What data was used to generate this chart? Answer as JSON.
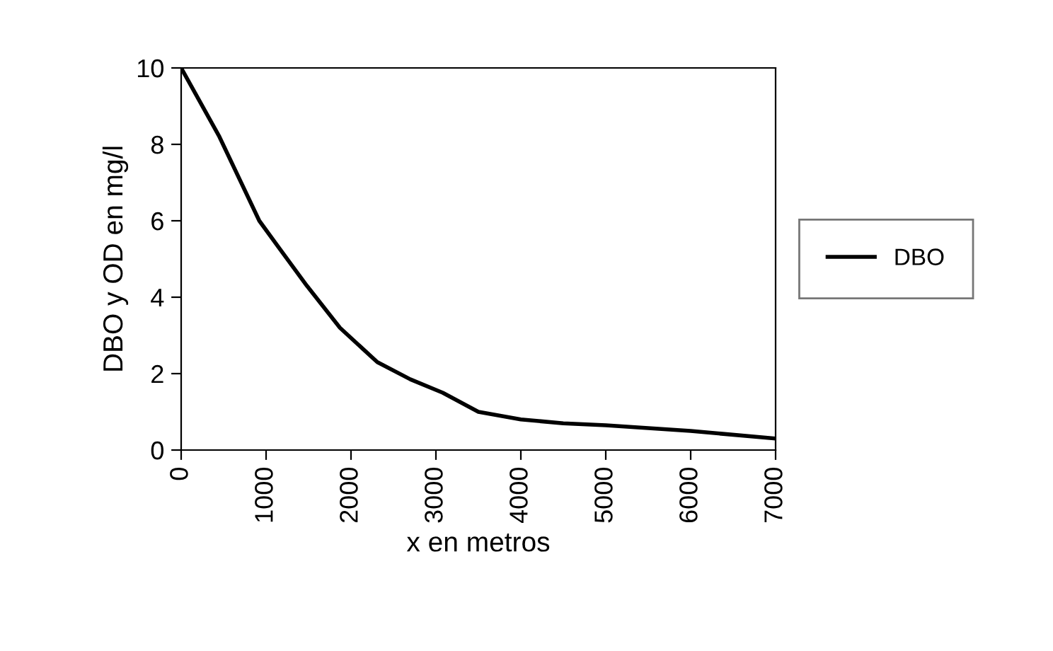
{
  "chart_data": {
    "type": "line",
    "xlabel": "x en metros",
    "ylabel": "DBO y OD en mg/l",
    "xlim": [
      0,
      7000
    ],
    "xticks": [
      0,
      1000,
      2000,
      3000,
      4000,
      5000,
      6000,
      7000
    ],
    "ylim": [
      0,
      10
    ],
    "yticks": [
      0,
      2,
      4,
      6,
      8,
      10
    ],
    "grid": false,
    "legend": "right",
    "marker": "none",
    "line_style": "solid",
    "series": [
      {
        "name": "DBO",
        "color": "#000000",
        "x": [
          0,
          450,
          920,
          1150,
          1480,
          1870,
          2310,
          2700,
          3080,
          3500,
          4000,
          4500,
          5000,
          6000,
          7000
        ],
        "values": [
          10,
          8.2,
          6.0,
          5.3,
          4.3,
          3.2,
          2.3,
          1.85,
          1.5,
          1.0,
          0.8,
          0.7,
          0.65,
          0.5,
          0.3
        ]
      }
    ]
  }
}
